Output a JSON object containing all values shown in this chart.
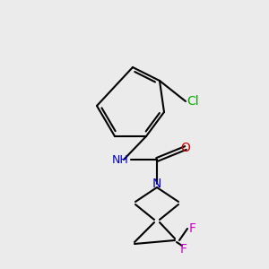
{
  "background_color": "#ebebeb",
  "bond_color": "#000000",
  "bond_lw": 1.5,
  "atom_colors": {
    "N": "#0000cc",
    "O": "#cc0000",
    "F": "#cc00cc",
    "Cl": "#00aa00",
    "H": "#000000",
    "C": "#000000"
  },
  "font_size": 9,
  "font_size_small": 8
}
